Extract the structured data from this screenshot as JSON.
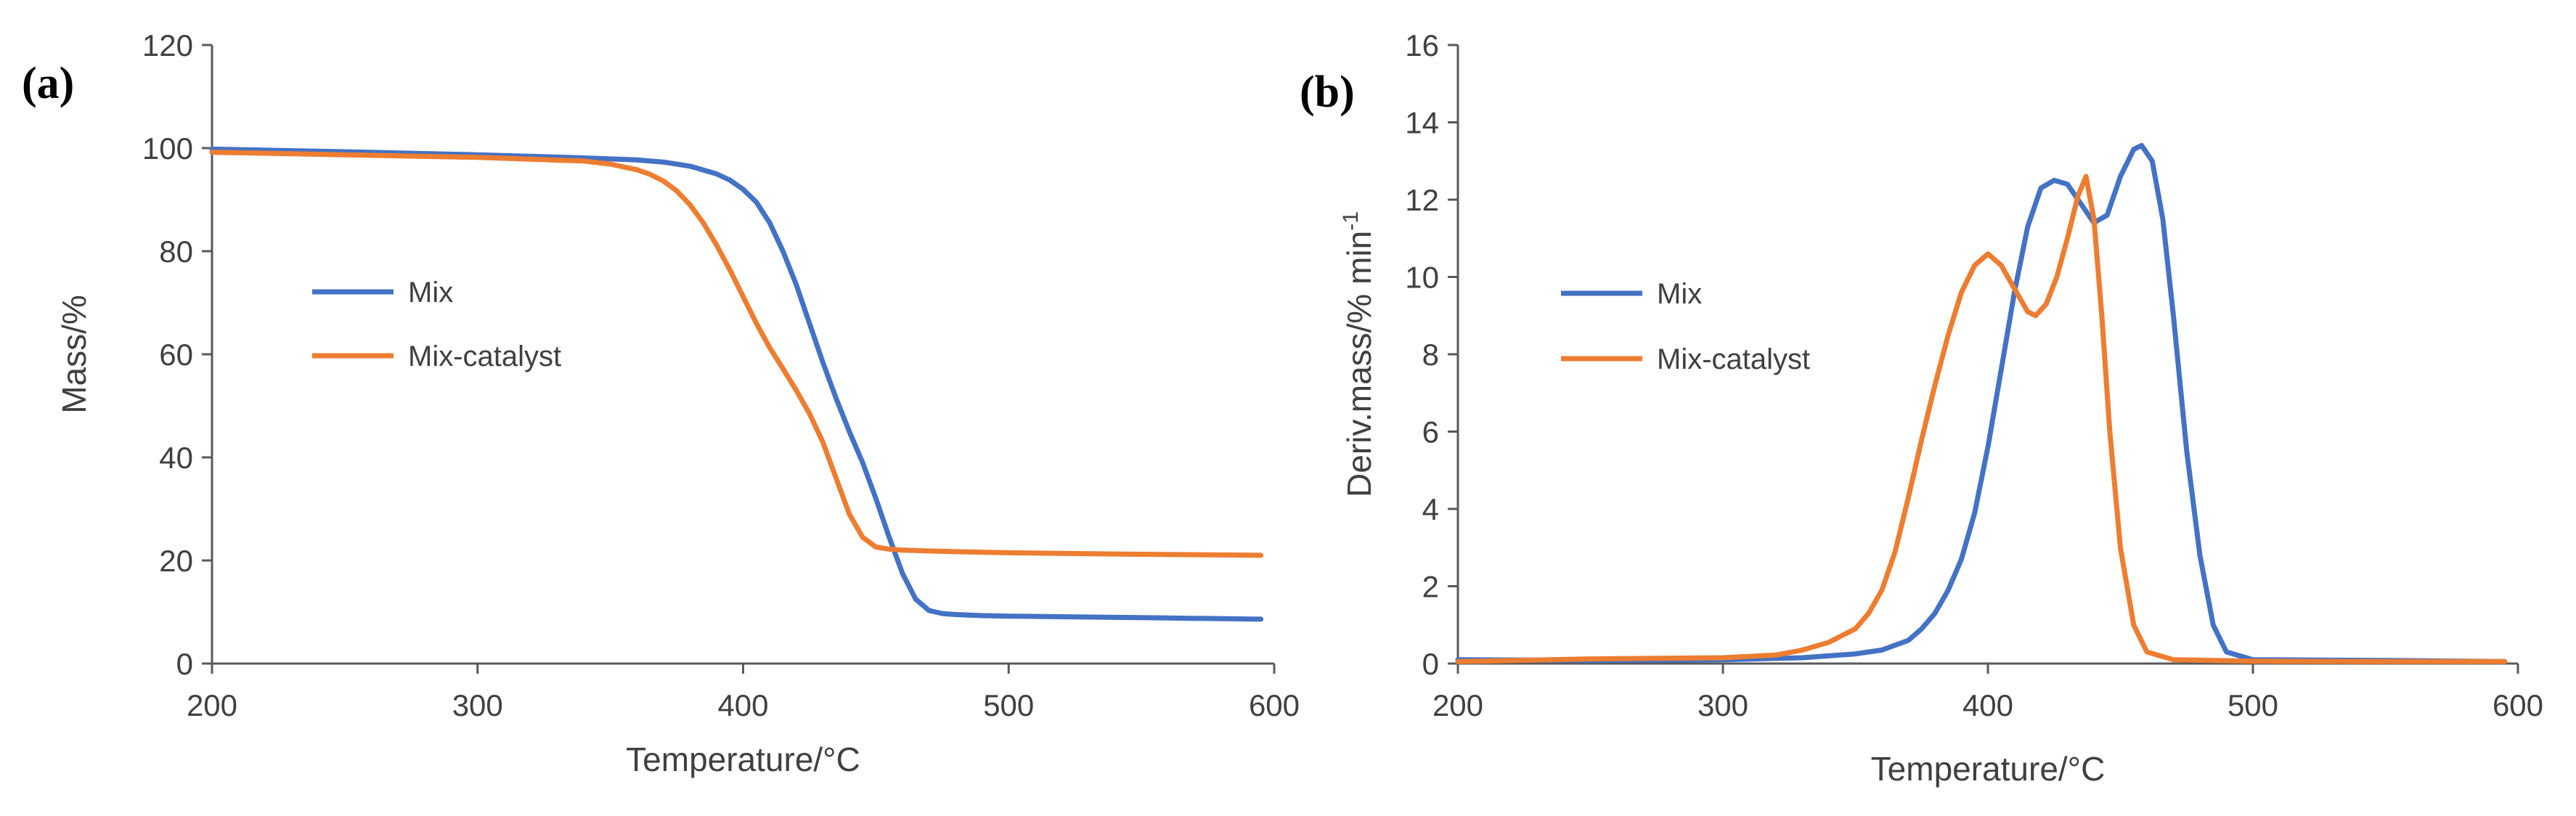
{
  "chart_data": [
    {
      "type": "line",
      "panel_label": "(a)",
      "title": "",
      "xlabel": "Temperature/°C",
      "ylabel": "Mass/%",
      "xlim": [
        200,
        600
      ],
      "ylim": [
        0,
        120
      ],
      "xticks": [
        200,
        300,
        400,
        500,
        600
      ],
      "yticks": [
        0,
        20,
        40,
        60,
        80,
        100,
        120
      ],
      "grid": false,
      "legend_position": "center-left",
      "series": [
        {
          "name": "Mix",
          "color": "#4472C4",
          "x": [
            200,
            250,
            300,
            340,
            360,
            370,
            380,
            390,
            395,
            400,
            405,
            410,
            415,
            420,
            425,
            430,
            435,
            440,
            445,
            450,
            455,
            460,
            465,
            470,
            475,
            480,
            490,
            500,
            550,
            595
          ],
          "y": [
            99.8,
            99.3,
            98.7,
            98.1,
            97.7,
            97.3,
            96.5,
            95.0,
            93.8,
            92.0,
            89.5,
            85.5,
            80.0,
            73.5,
            66.0,
            58.5,
            51.5,
            45.0,
            39.0,
            32.0,
            24.5,
            17.5,
            12.5,
            10.3,
            9.7,
            9.5,
            9.3,
            9.2,
            8.9,
            8.6
          ]
        },
        {
          "name": "Mix-catalyst",
          "color": "#ED7D31",
          "x": [
            200,
            250,
            300,
            340,
            350,
            360,
            365,
            370,
            375,
            380,
            385,
            390,
            395,
            400,
            405,
            410,
            415,
            420,
            425,
            430,
            435,
            440,
            445,
            450,
            455,
            460,
            480,
            500,
            550,
            595
          ],
          "y": [
            99.2,
            98.7,
            98.2,
            97.5,
            96.9,
            95.8,
            94.9,
            93.6,
            91.7,
            89.0,
            85.5,
            81.2,
            76.4,
            71.2,
            66.0,
            61.3,
            57.2,
            53.0,
            48.5,
            43.0,
            36.0,
            29.0,
            24.5,
            22.6,
            22.2,
            22.0,
            21.7,
            21.5,
            21.2,
            21.0
          ]
        }
      ]
    },
    {
      "type": "line",
      "panel_label": "(b)",
      "title": "",
      "xlabel": "Temperature/°C",
      "ylabel": "Deriv.mass/% min",
      "ylabel_superscript": "-1",
      "xlim": [
        200,
        600
      ],
      "ylim": [
        0,
        16
      ],
      "xticks": [
        200,
        300,
        400,
        500,
        600
      ],
      "yticks": [
        0,
        2,
        4,
        6,
        8,
        10,
        12,
        14,
        16
      ],
      "grid": false,
      "legend_position": "center-left",
      "series": [
        {
          "name": "Mix",
          "color": "#4472C4",
          "x": [
            200,
            250,
            300,
            330,
            350,
            360,
            370,
            375,
            380,
            385,
            390,
            395,
            400,
            405,
            410,
            415,
            420,
            425,
            430,
            435,
            440,
            445,
            450,
            455,
            458,
            462,
            466,
            470,
            475,
            480,
            485,
            490,
            500,
            550,
            595
          ],
          "y": [
            0.1,
            0.08,
            0.1,
            0.15,
            0.25,
            0.35,
            0.6,
            0.9,
            1.3,
            1.9,
            2.7,
            3.9,
            5.6,
            7.6,
            9.6,
            11.3,
            12.3,
            12.5,
            12.4,
            11.9,
            11.4,
            11.6,
            12.6,
            13.3,
            13.4,
            13.0,
            11.5,
            9.0,
            5.5,
            2.8,
            1.0,
            0.3,
            0.1,
            0.08,
            0.05
          ]
        },
        {
          "name": "Mix-catalyst",
          "color": "#ED7D31",
          "x": [
            200,
            250,
            300,
            320,
            330,
            340,
            350,
            355,
            360,
            365,
            370,
            375,
            380,
            385,
            390,
            395,
            400,
            405,
            410,
            415,
            418,
            422,
            426,
            430,
            434,
            437,
            440,
            443,
            446,
            450,
            455,
            460,
            470,
            500,
            550,
            595
          ],
          "y": [
            0.05,
            0.12,
            0.15,
            0.22,
            0.35,
            0.55,
            0.9,
            1.3,
            1.9,
            2.9,
            4.3,
            5.8,
            7.2,
            8.5,
            9.6,
            10.3,
            10.6,
            10.3,
            9.7,
            9.1,
            9.0,
            9.3,
            10.0,
            11.0,
            12.1,
            12.6,
            11.5,
            9.0,
            6.0,
            3.0,
            1.0,
            0.3,
            0.1,
            0.06,
            0.05,
            0.05
          ]
        }
      ]
    }
  ]
}
